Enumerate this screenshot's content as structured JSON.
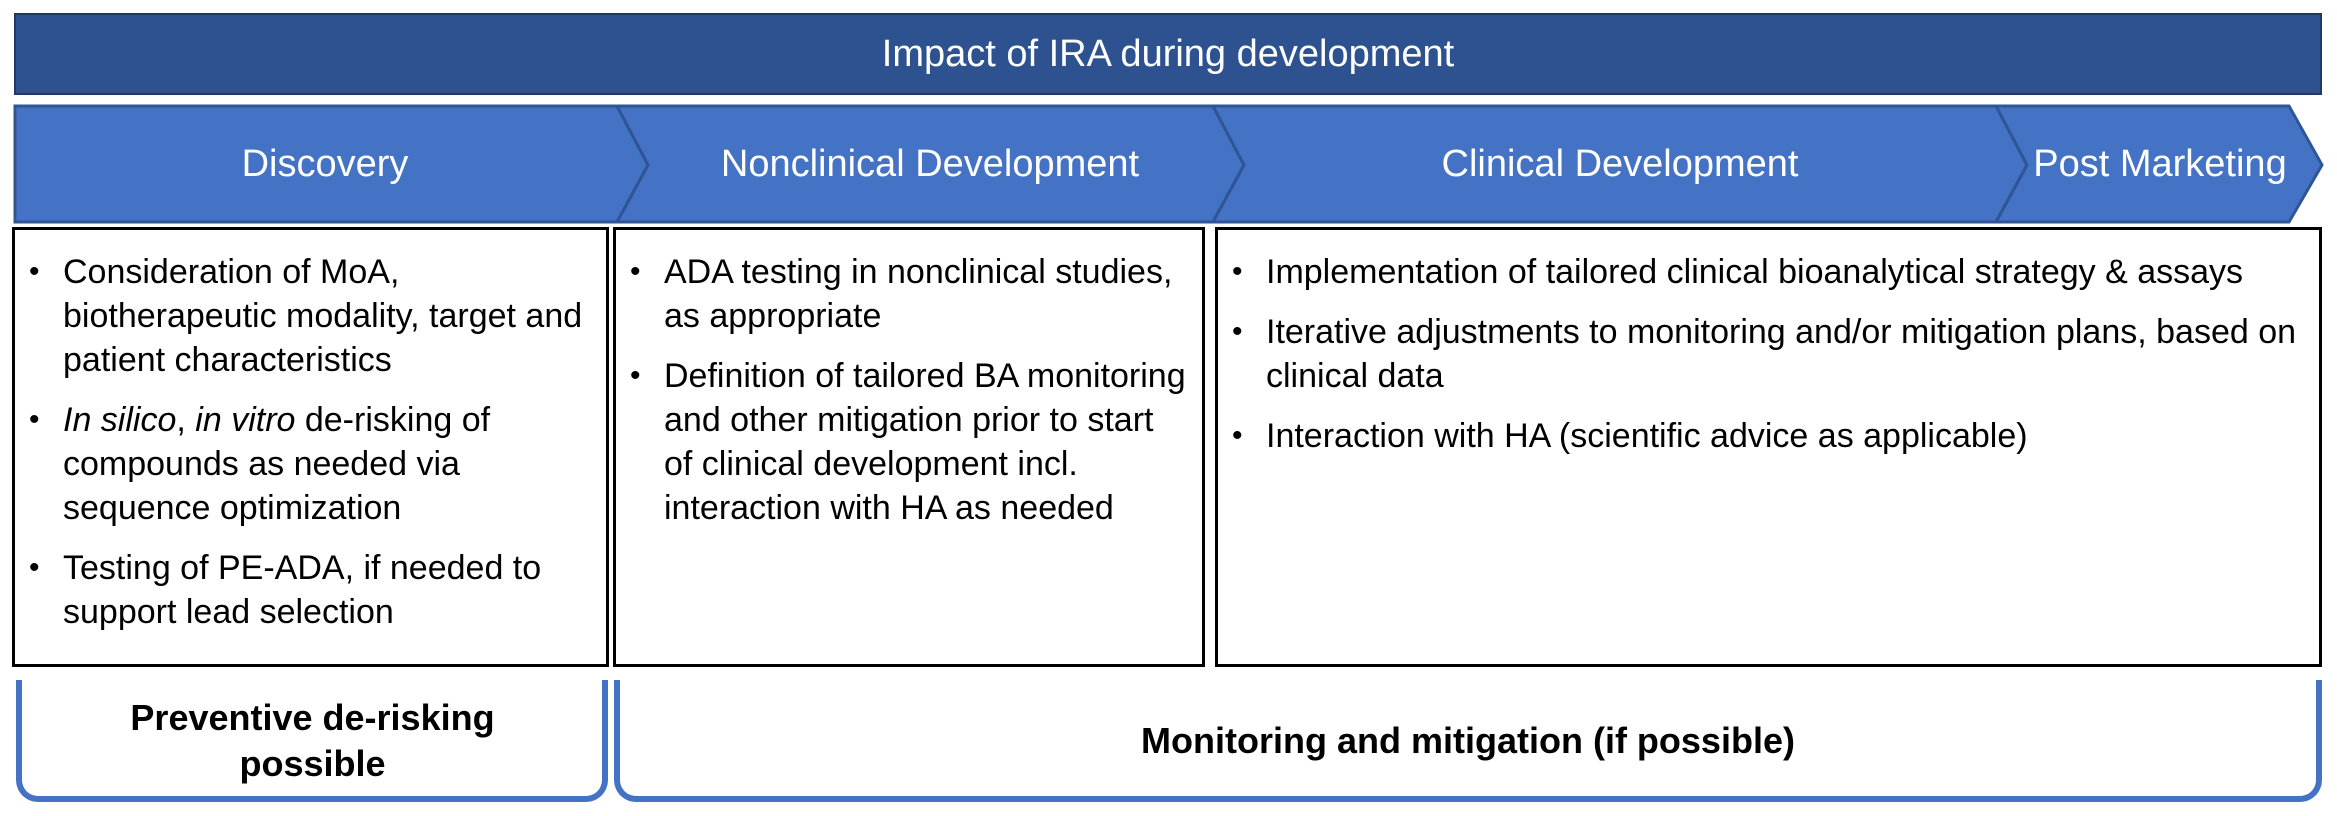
{
  "banner": {
    "title": "Impact of IRA during development"
  },
  "phases": [
    {
      "label": "Discovery"
    },
    {
      "label": "Nonclinical Development"
    },
    {
      "label": "Clinical Development"
    },
    {
      "label": "Post Marketing"
    }
  ],
  "colors": {
    "banner": "#2e528f",
    "phase": "#4472c4",
    "bracket": "#4472c4"
  },
  "boxes": [
    {
      "bullets": [
        "Consideration of MoA, biotherapeutic modality, target and patient characteristics",
        {
          "em1": "In silico",
          "sep": ", ",
          "em2": "in vitro",
          "rest": " de-risking of compounds as needed via sequence optimization"
        },
        "Testing of PE-ADA, if needed to support lead selection"
      ]
    },
    {
      "bullets": [
        "ADA testing in nonclinical studies, as appropriate",
        "Definition of tailored BA monitoring and other mitigation prior to start of clinical development incl. interaction with HA as needed"
      ]
    },
    {
      "bullets": [
        "Implementation of tailored clinical bioanalytical strategy & assays",
        "Iterative adjustments to monitoring and/or mitigation plans, based on clinical data",
        "Interaction with HA (scientific advice as applicable)"
      ]
    }
  ],
  "outcomes": {
    "preventive": "Preventive de-risking possible",
    "monitoring": "Monitoring and mitigation (if possible)"
  }
}
